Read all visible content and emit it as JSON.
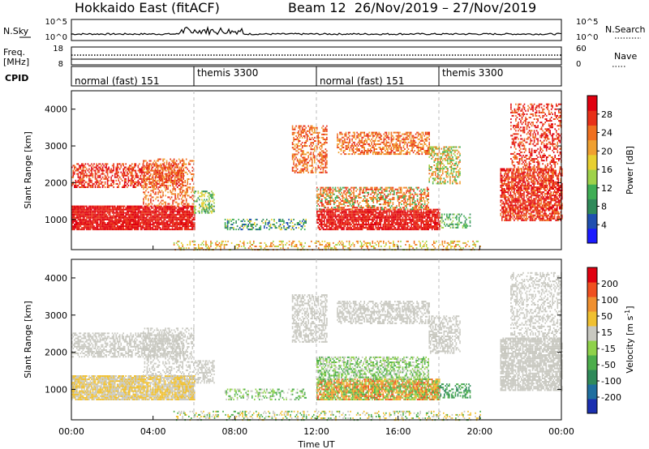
{
  "header": {
    "radar_title": "Hokkaido East (fitACF)",
    "beam_date": "Beam 12  26/Nov/2019 – 27/Nov/2019"
  },
  "chart_data": {
    "type": "heatmap",
    "time_axis": {
      "label": "Time UT",
      "range_hours": [
        0,
        24
      ],
      "ticks": [
        {
          "h": 0,
          "label": "00:00"
        },
        {
          "h": 4,
          "label": "04:00"
        },
        {
          "h": 8,
          "label": "08:00"
        },
        {
          "h": 12,
          "label": "12:00"
        },
        {
          "h": 16,
          "label": "16:00"
        },
        {
          "h": 20,
          "label": "20:00"
        },
        {
          "h": 24,
          "label": "00:00"
        }
      ]
    },
    "noise_panel": {
      "left_label": "N.Sky",
      "right_label": "N.Search",
      "left_ticks": [
        "10^5",
        "10^0"
      ],
      "right_ticks": [
        "10^5",
        "10^0"
      ]
    },
    "freq_panel": {
      "left_label_1": "Freq.",
      "left_label_2": "[MHz]",
      "left_ticks": [
        "18",
        "8"
      ],
      "right_ticks": [
        "60",
        "0"
      ],
      "right_label": "Nave"
    },
    "cpid_panel": {
      "label": "CPID",
      "segments": [
        {
          "start_h": 0,
          "end_h": 6,
          "label": "normal (fast) 151"
        },
        {
          "start_h": 6,
          "end_h": 12,
          "label": "themis 3300"
        },
        {
          "start_h": 12,
          "end_h": 18,
          "label": "normal (fast) 151"
        },
        {
          "start_h": 18,
          "end_h": 24,
          "label": "themis 3300"
        }
      ]
    },
    "range_axis": {
      "label": "Slant Range [km]",
      "range_km": [
        180,
        4500
      ],
      "ticks": [
        1000,
        2000,
        3000,
        4000
      ],
      "tick_labels": [
        "1000",
        "2000",
        "3000",
        "4000"
      ]
    },
    "power_panel": {
      "colorbar_label": "Power [dB]",
      "colorbar_ticks": [
        "4",
        "8",
        "12",
        "16",
        "20",
        "24",
        "28"
      ],
      "colors": [
        "#1a1aff",
        "#1f4fb0",
        "#2f8a5a",
        "#3fae55",
        "#9fd24a",
        "#e8d030",
        "#f0a030",
        "#f07020",
        "#e83018",
        "#e00010"
      ]
    },
    "velocity_panel": {
      "colorbar_label": "Velocity [m s^-1]",
      "colorbar_ticks": [
        "200",
        "100",
        "50",
        "15",
        "-15",
        "-50",
        "-100",
        "-200"
      ],
      "colors": [
        "#1a2fb0",
        "#1f6f9f",
        "#2f8a5a",
        "#4cae4c",
        "#8fd24a",
        "#c8c8c0",
        "#f0c030",
        "#f09030",
        "#f05020",
        "#e00010"
      ]
    }
  }
}
